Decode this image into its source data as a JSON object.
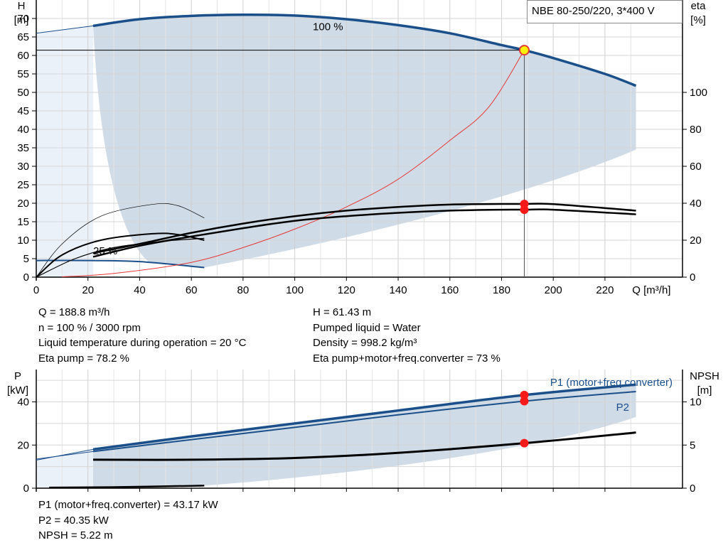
{
  "chart_data": [
    {
      "type": "line",
      "title": "NBE 80-250/220, 3*400 V",
      "xlabel": "Q [m³/h]",
      "ylabel": "H\n[m]",
      "y2label": "eta\n[%]",
      "xlim": [
        0,
        250
      ],
      "ylim": [
        0,
        75
      ],
      "y2lim": [
        0,
        150
      ],
      "xticks": [
        0,
        20,
        40,
        60,
        80,
        100,
        120,
        140,
        160,
        180,
        200,
        220
      ],
      "yticks": [
        0,
        5,
        10,
        15,
        20,
        25,
        30,
        35,
        40,
        45,
        50,
        55,
        60,
        65,
        70
      ],
      "y2ticks": [
        0,
        20,
        40,
        60,
        80,
        100
      ],
      "grid": true,
      "annotations": [
        "100 %",
        "25 %"
      ],
      "operating_point": {
        "q": 188.8,
        "h": 61.43
      },
      "series": [
        {
          "name": "100 %",
          "axis": "H",
          "color": "#1a4f8a",
          "x": [
            22,
            40,
            60,
            80,
            100,
            120,
            140,
            160,
            180,
            188.8,
            200,
            220,
            232
          ],
          "y": [
            68,
            69.8,
            70.7,
            71,
            70.8,
            69.8,
            68.2,
            66,
            62.8,
            61.43,
            59.3,
            55,
            51.8
          ]
        },
        {
          "name": "",
          "axis": "H",
          "color": "#1a4f8a",
          "x": [
            0,
            20,
            40,
            65
          ],
          "y": [
            4.5,
            4.5,
            4.2,
            2.6
          ]
        },
        {
          "name": "",
          "axis": "H",
          "color": "#e53935",
          "x": [
            10,
            30,
            60,
            80,
            100,
            120,
            140,
            160,
            175,
            188.8
          ],
          "y": [
            0.1,
            1,
            4,
            8,
            13,
            19,
            26.5,
            37,
            46,
            61.43
          ]
        },
        {
          "name": "",
          "axis": "eta",
          "color": "#000000",
          "x": [
            22,
            40,
            60,
            80,
            100,
            120,
            140,
            160,
            180,
            188.8,
            200,
            232
          ],
          "y": [
            13,
            18,
            24,
            29,
            33,
            36,
            38,
            39.3,
            39.6,
            39.6,
            39.5,
            36
          ]
        },
        {
          "name": "",
          "axis": "eta",
          "color": "#000000",
          "x": [
            22,
            40,
            60,
            80,
            100,
            120,
            140,
            160,
            180,
            188.8,
            200,
            232
          ],
          "y": [
            11,
            17,
            22,
            26.5,
            30.5,
            33,
            34.8,
            36,
            36.5,
            36.5,
            36.5,
            34
          ]
        }
      ]
    },
    {
      "type": "line",
      "xlabel": "",
      "ylabel": "P\n[kW]",
      "y2label": "NPSH\n[m]",
      "xlim": [
        0,
        250
      ],
      "ylim": [
        0,
        55
      ],
      "y2lim": [
        0,
        13.75
      ],
      "yticks": [
        0,
        20,
        40
      ],
      "y2ticks": [
        0,
        5,
        10
      ],
      "grid": true,
      "series": [
        {
          "name": "P1 (motor+freq.converter)",
          "axis": "P",
          "color": "#1a4f8a",
          "x": [
            22,
            60,
            100,
            140,
            188.8,
            232
          ],
          "y": [
            18,
            24,
            30,
            36,
            43.17,
            48
          ]
        },
        {
          "name": "P2",
          "axis": "P",
          "color": "#1a4f8a",
          "x": [
            22,
            60,
            100,
            140,
            188.8,
            232
          ],
          "y": [
            17,
            22.5,
            28.2,
            34,
            40.35,
            44.8
          ]
        },
        {
          "name": "",
          "axis": "NPSH",
          "color": "#000000",
          "x": [
            22,
            60,
            100,
            140,
            188.8,
            232
          ],
          "y": [
            3.3,
            3.3,
            3.5,
            4.1,
            5.22,
            6.45
          ]
        },
        {
          "name": "",
          "axis": "P",
          "color": "#000000",
          "x": [
            5,
            30,
            65
          ],
          "y": [
            0.3,
            0.5,
            1.2
          ]
        }
      ]
    }
  ],
  "info_top_left": [
    "Q = 188.8 m³/h",
    "n = 100 % / 3000 rpm",
    "Liquid temperature during operation = 20 °C",
    "Eta pump = 78.2 %"
  ],
  "info_top_right": [
    "H = 61.43 m",
    "Pumped liquid = Water",
    "Density = 998.2 kg/m³",
    "Eta pump+motor+freq.converter = 73 %"
  ],
  "info_bottom": [
    "P1 (motor+freq.converter) = 43.17 kW",
    "P2 = 40.35 kW",
    "NPSH = 5.22 m"
  ]
}
